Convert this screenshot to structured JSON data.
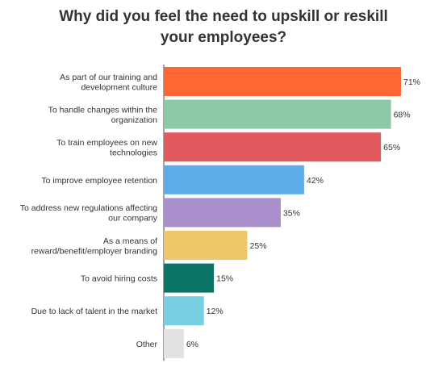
{
  "chart_data": {
    "type": "bar",
    "orientation": "horizontal",
    "title": "Why did you feel the need to upskill or reskill your employees?",
    "title_lines": [
      "Why did you feel the need to upskill or reskill",
      "your employees?"
    ],
    "categories": [
      "As part of our training and development culture",
      "To handle changes within the organization",
      "To train employees on new technologies",
      "To improve employee retention",
      "To address new regulations affecting our company",
      "As a means of reward/benefit/employer branding",
      "To avoid hiring costs",
      "Due to lack of talent in the market",
      "Other"
    ],
    "category_label_lines": [
      [
        "As part of our training and",
        "development culture"
      ],
      [
        "To handle changes within the",
        "organization"
      ],
      [
        "To train employees on new",
        "technologies"
      ],
      [
        "To improve employee retention"
      ],
      [
        "To address new regulations affecting",
        "our company"
      ],
      [
        "As a means of",
        "reward/benefit/employer branding"
      ],
      [
        "To avoid hiring costs"
      ],
      [
        "Due to lack of talent in the market"
      ],
      [
        "Other"
      ]
    ],
    "values": [
      71,
      68,
      65,
      42,
      35,
      25,
      15,
      12,
      6
    ],
    "value_labels": [
      "71%",
      "68%",
      "65%",
      "42%",
      "35%",
      "25%",
      "15%",
      "12%",
      "6%"
    ],
    "colors": [
      "#FF6633",
      "#8CC9A6",
      "#E05A5E",
      "#5DAEE8",
      "#A98FCB",
      "#EFC76A",
      "#0A7466",
      "#76CFE2",
      "#E2E2E2"
    ],
    "xlim": [
      0,
      71
    ],
    "grid": false,
    "legend": "none",
    "xlabel": "",
    "ylabel": ""
  }
}
